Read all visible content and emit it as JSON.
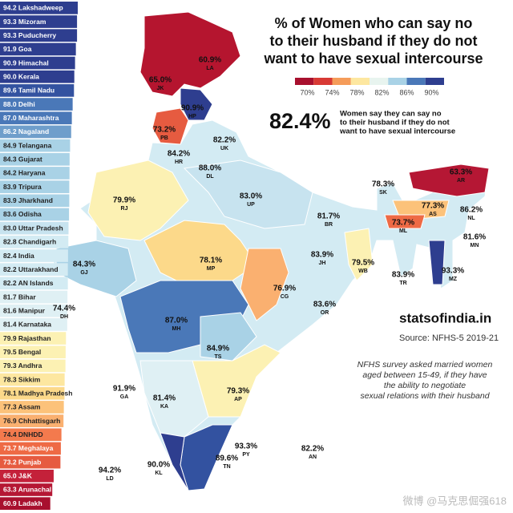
{
  "ranking": [
    {
      "value": "94.2",
      "name": "Lakshadweep",
      "color": "#2e3e8f"
    },
    {
      "value": "93.3",
      "name": "Mizoram",
      "color": "#2e3e8f"
    },
    {
      "value": "93.3",
      "name": "Puducherry",
      "color": "#2e3e8f"
    },
    {
      "value": "91.9",
      "name": "Goa",
      "color": "#2e3e8f"
    },
    {
      "value": "90.9",
      "name": "Himachal",
      "color": "#2e3e8f"
    },
    {
      "value": "90.0",
      "name": "Kerala",
      "color": "#2e3e8f"
    },
    {
      "value": "89.6",
      "name": "Tamil Nadu",
      "color": "#3352a0"
    },
    {
      "value": "88.0",
      "name": "Delhi",
      "color": "#4a78b8"
    },
    {
      "value": "87.0",
      "name": "Maharashtra",
      "color": "#4a78b8"
    },
    {
      "value": "86.2",
      "name": "Nagaland",
      "color": "#6f9ecb"
    },
    {
      "value": "84.9",
      "name": "Telangana",
      "color": "#a9d2e6"
    },
    {
      "value": "84.3",
      "name": "Gujarat",
      "color": "#a9d2e6"
    },
    {
      "value": "84.2",
      "name": "Haryana",
      "color": "#a9d2e6"
    },
    {
      "value": "83.9",
      "name": "Tripura",
      "color": "#a9d2e6"
    },
    {
      "value": "83.9",
      "name": "Jharkhand",
      "color": "#a9d2e6"
    },
    {
      "value": "83.6",
      "name": "Odisha",
      "color": "#a9d2e6"
    },
    {
      "value": "83.0",
      "name": "Uttar Pradesh",
      "color": "#c7e3ef"
    },
    {
      "value": "82.8",
      "name": "Chandigarh",
      "color": "#d3ebf3"
    },
    {
      "value": "82.4",
      "name": "India",
      "color": "#d3ebf3"
    },
    {
      "value": "82.2",
      "name": "Uttarakhand",
      "color": "#d3ebf3"
    },
    {
      "value": "82.2",
      "name": "AN Islands",
      "color": "#d3ebf3"
    },
    {
      "value": "81.7",
      "name": "Bihar",
      "color": "#dff0f4"
    },
    {
      "value": "81.6",
      "name": "Manipur",
      "color": "#dff0f4"
    },
    {
      "value": "81.4",
      "name": "Karnataka",
      "color": "#dff0f4"
    },
    {
      "value": "79.9",
      "name": "Rajasthan",
      "color": "#fcf1b3"
    },
    {
      "value": "79.5",
      "name": "Bengal",
      "color": "#fcf1b3"
    },
    {
      "value": "79.3",
      "name": "Andhra",
      "color": "#fcf1b3"
    },
    {
      "value": "78.3",
      "name": "Sikkim",
      "color": "#fde7a0"
    },
    {
      "value": "78.1",
      "name": "Madhya Pradesh",
      "color": "#fcd98a"
    },
    {
      "value": "77.3",
      "name": "Assam",
      "color": "#fcc27a"
    },
    {
      "value": "76.9",
      "name": "Chhattisgarh",
      "color": "#fab070"
    },
    {
      "value": "74.4",
      "name": "DNHDD",
      "color": "#f37a4d"
    },
    {
      "value": "73.7",
      "name": "Meghalaya",
      "color": "#ee6a45"
    },
    {
      "value": "73.2",
      "name": "Punjab",
      "color": "#e65b40"
    },
    {
      "value": "65.0",
      "name": "J&K",
      "color": "#c4213a"
    },
    {
      "value": "63.3",
      "name": "Arunachal",
      "color": "#b51734"
    },
    {
      "value": "60.9",
      "name": "Ladakh",
      "color": "#a8102e"
    }
  ],
  "title_lines": [
    "% of Women who can say no",
    "to their husband if they do not",
    "want to have sexual intercourse"
  ],
  "legend": {
    "colors": [
      "#a8102e",
      "#d83a35",
      "#f59c5a",
      "#fde7a0",
      "#e8f4ef",
      "#a9d2e6",
      "#4a78b8",
      "#2e3e8f"
    ],
    "ticks": [
      "70%",
      "74%",
      "78%",
      "82%",
      "86%",
      "90%"
    ]
  },
  "headline": {
    "value": "82.4%",
    "lines": [
      "Women say they can say no",
      "to their husband if they do not",
      "want to have sexual intercourse"
    ]
  },
  "brand": "statsofindia.in",
  "source": "Source: NFHS-5 2019-21",
  "note_lines": [
    "NFHS survey asked married women",
    "aged between 15-49, if they have",
    "the ability to negotiate",
    "sexual relations with their husband"
  ],
  "map_labels": [
    {
      "value": "60.9%",
      "code": "LA"
    },
    {
      "value": "65.0%",
      "code": "JK"
    },
    {
      "value": "90.9%",
      "code": "HP"
    },
    {
      "value": "73.2%",
      "code": "PB"
    },
    {
      "value": "82.2%",
      "code": "UK"
    },
    {
      "value": "84.2%",
      "code": "HR"
    },
    {
      "value": "88.0%",
      "code": "DL"
    },
    {
      "value": "79.9%",
      "code": "RJ"
    },
    {
      "value": "83.0%",
      "code": "UP"
    },
    {
      "value": "78.3%",
      "code": "SK"
    },
    {
      "value": "63.3%",
      "code": "AR"
    },
    {
      "value": "77.3%",
      "code": "AS"
    },
    {
      "value": "86.2%",
      "code": "NL"
    },
    {
      "value": "81.7%",
      "code": "BR"
    },
    {
      "value": "73.7%",
      "code": "ML"
    },
    {
      "value": "81.6%",
      "code": "MN"
    },
    {
      "value": "84.3%",
      "code": "GJ"
    },
    {
      "value": "78.1%",
      "code": "MP"
    },
    {
      "value": "83.9%",
      "code": "JH"
    },
    {
      "value": "79.5%",
      "code": "WB"
    },
    {
      "value": "83.9%",
      "code": "TR"
    },
    {
      "value": "93.3%",
      "code": "MZ"
    },
    {
      "value": "76.9%",
      "code": "CG"
    },
    {
      "value": "74.4%",
      "code": "DH"
    },
    {
      "value": "83.6%",
      "code": "OR"
    },
    {
      "value": "87.0%",
      "code": "MH"
    },
    {
      "value": "84.9%",
      "code": "TS"
    },
    {
      "value": "91.9%",
      "code": "GA"
    },
    {
      "value": "81.4%",
      "code": "KA"
    },
    {
      "value": "79.3%",
      "code": "AP"
    },
    {
      "value": "93.3%",
      "code": "PY"
    },
    {
      "value": "82.2%",
      "code": "AN"
    },
    {
      "value": "89.6%",
      "code": "TN"
    },
    {
      "value": "90.0%",
      "code": "KL"
    },
    {
      "value": "94.2%",
      "code": "LD"
    }
  ],
  "watermark": "微博 @马克思倔强618"
}
